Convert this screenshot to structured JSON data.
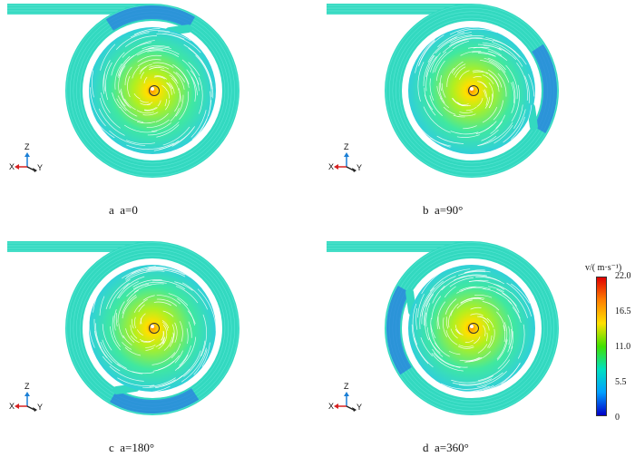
{
  "panels": [
    {
      "id": "a",
      "letter": "a",
      "label": "a=0",
      "gap_angle_deg": 300,
      "tongue": "upper"
    },
    {
      "id": "b",
      "letter": "b",
      "label": "a=90°",
      "gap_angle_deg": 30,
      "tongue": "right"
    },
    {
      "id": "c",
      "letter": "c",
      "label": "a=180°",
      "gap_angle_deg": 120,
      "tongue": "lower"
    },
    {
      "id": "d",
      "letter": "d",
      "label": "a=360°",
      "gap_angle_deg": 210,
      "tongue": "left"
    }
  ],
  "axes_labels": {
    "z": "Z",
    "x": "X",
    "y": "Y"
  },
  "colorbar": {
    "title": "v/( m·s⁻¹)",
    "ticks": [
      "22.0",
      "16.5",
      "11.0",
      "5.5",
      "0"
    ],
    "min": 0,
    "max": 22,
    "colors": [
      "#0000c8",
      "#00a0ff",
      "#00e0c0",
      "#40e000",
      "#ffe000",
      "#ff8000",
      "#e00000"
    ]
  },
  "field_colors": {
    "outer_ring": "#33d9c0",
    "inner_core": "#ffe000",
    "inner_mid": "#b0f020",
    "streak": "#ffffff",
    "blue_zone": "#2a7ce0"
  }
}
